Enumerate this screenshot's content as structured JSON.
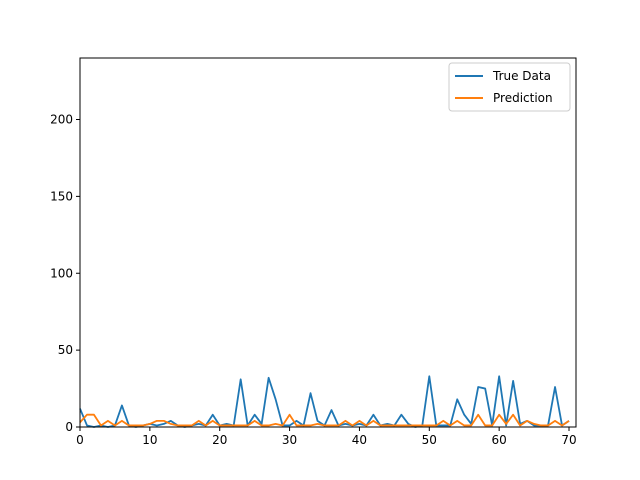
{
  "chart_data": {
    "type": "line",
    "title": "",
    "xlabel": "",
    "ylabel": "",
    "xlim": [
      0,
      71
    ],
    "ylim": [
      0,
      240
    ],
    "xticks": [
      0,
      10,
      20,
      30,
      40,
      50,
      60,
      70
    ],
    "yticks": [
      0,
      50,
      100,
      150,
      200
    ],
    "grid": false,
    "legend_position": "top-right",
    "x": [
      0,
      1,
      2,
      3,
      4,
      5,
      6,
      7,
      8,
      9,
      10,
      11,
      12,
      13,
      14,
      15,
      16,
      17,
      18,
      19,
      20,
      21,
      22,
      23,
      24,
      25,
      26,
      27,
      28,
      29,
      30,
      31,
      32,
      33,
      34,
      35,
      36,
      37,
      38,
      39,
      40,
      41,
      42,
      43,
      44,
      45,
      46,
      47,
      48,
      49,
      50,
      51,
      52,
      53,
      54,
      55,
      56,
      57,
      58,
      59,
      60,
      61,
      62,
      63,
      64,
      65,
      66,
      67,
      68,
      69,
      70
    ],
    "series": [
      {
        "name": "True Data",
        "color": "#1f77b4",
        "values": [
          12,
          1,
          0,
          1,
          0,
          1,
          14,
          1,
          0,
          1,
          2,
          1,
          2,
          4,
          1,
          0,
          1,
          2,
          1,
          8,
          1,
          2,
          1,
          31,
          1,
          8,
          2,
          32,
          18,
          1,
          1,
          4,
          1,
          22,
          4,
          1,
          11,
          1,
          2,
          1,
          2,
          1,
          8,
          1,
          2,
          1,
          8,
          2,
          0,
          1,
          33,
          1,
          1,
          1,
          18,
          8,
          2,
          26,
          25,
          1,
          33,
          1,
          30,
          2,
          4,
          1,
          1,
          1,
          26,
          1,
          4
        ]
      },
      {
        "name": "Prediction",
        "color": "#ff7f0e",
        "values": [
          3,
          8,
          8,
          1,
          4,
          1,
          4,
          1,
          1,
          1,
          2,
          4,
          4,
          2,
          1,
          1,
          1,
          4,
          1,
          4,
          1,
          1,
          1,
          1,
          1,
          4,
          1,
          1,
          2,
          1,
          8,
          1,
          1,
          1,
          2,
          1,
          1,
          1,
          4,
          1,
          4,
          1,
          4,
          1,
          1,
          1,
          1,
          1,
          1,
          1,
          1,
          1,
          4,
          1,
          4,
          1,
          1,
          8,
          1,
          1,
          8,
          2,
          8,
          1,
          4,
          2,
          1,
          1,
          4,
          1,
          4
        ]
      }
    ]
  }
}
